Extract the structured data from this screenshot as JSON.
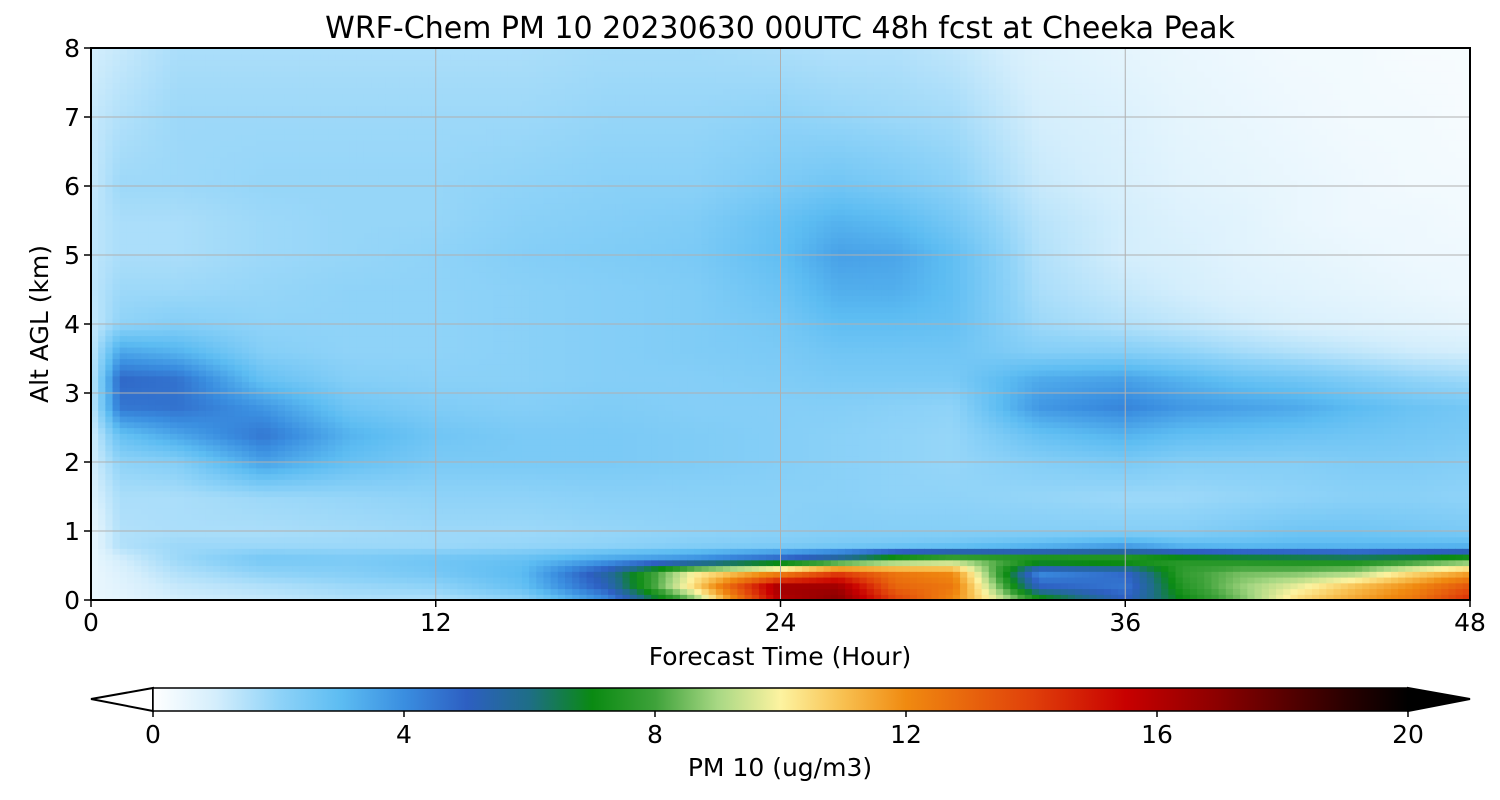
{
  "chart_data": {
    "type": "heatmap",
    "title": "WRF-Chem PM 10  20230630 00UTC 48h fcst at Cheeka Peak",
    "xlabel": "Forecast Time (Hour)",
    "ylabel": "Alt AGL (km)",
    "xlim": [
      0,
      48
    ],
    "ylim": [
      0,
      8
    ],
    "x_ticks": [
      "0",
      "12",
      "24",
      "36",
      "48"
    ],
    "y_ticks": [
      "0",
      "1",
      "2",
      "3",
      "4",
      "5",
      "6",
      "7",
      "8"
    ],
    "grid": true,
    "colorbar": {
      "label": "PM 10  (ug/m3)",
      "range": [
        0,
        20
      ],
      "ticks": [
        "0",
        "4",
        "8",
        "12",
        "16",
        "20"
      ],
      "extend": "both",
      "stops": [
        {
          "v": 0,
          "color": "#ffffff"
        },
        {
          "v": 1,
          "color": "#d4eefc"
        },
        {
          "v": 2,
          "color": "#8fd3f8"
        },
        {
          "v": 3,
          "color": "#5cbcf2"
        },
        {
          "v": 4,
          "color": "#3a8ee0"
        },
        {
          "v": 5,
          "color": "#2d5fc2"
        },
        {
          "v": 6,
          "color": "#1e6e86"
        },
        {
          "v": 7,
          "color": "#0a8a12"
        },
        {
          "v": 8,
          "color": "#3ea23a"
        },
        {
          "v": 9,
          "color": "#a8d884"
        },
        {
          "v": 10,
          "color": "#fdf3a0"
        },
        {
          "v": 11,
          "color": "#f8c050"
        },
        {
          "v": 12,
          "color": "#f08a10"
        },
        {
          "v": 14,
          "color": "#e0400a"
        },
        {
          "v": 15.5,
          "color": "#c80000"
        },
        {
          "v": 17,
          "color": "#8a0000"
        },
        {
          "v": 19,
          "color": "#2a0000"
        },
        {
          "v": 20,
          "color": "#000000"
        }
      ]
    },
    "field": {
      "x_hours": [
        0,
        1,
        3,
        6,
        9,
        12,
        15,
        18,
        21,
        24,
        26,
        28,
        30,
        33,
        36,
        38,
        40,
        42,
        44,
        46,
        48
      ],
      "y_km": [
        0,
        0.2,
        0.4,
        0.6,
        0.8,
        1.0,
        1.5,
        2.0,
        2.4,
        2.8,
        3.2,
        3.6,
        4.0,
        4.5,
        5.0,
        5.5,
        6.0,
        7.0,
        8.0
      ],
      "values": [
        [
          0.5,
          0.5,
          0.5,
          0.5,
          0.5,
          0.5,
          0.8,
          1.0,
          1.0,
          1.2,
          1.2,
          1.2,
          1.2,
          1.3,
          1.3,
          1.3,
          1.2,
          1.2,
          1.0
        ],
        [
          0.6,
          0.7,
          0.8,
          1.0,
          1.5,
          1.5,
          1.6,
          2.0,
          2.8,
          4.5,
          4.8,
          3.5,
          2.0,
          1.8,
          1.6,
          1.6,
          1.8,
          1.5,
          1.2
        ],
        [
          1.0,
          1.2,
          1.5,
          1.8,
          1.8,
          1.6,
          1.6,
          2.2,
          3.5,
          4.6,
          4.6,
          3.2,
          2.2,
          1.8,
          1.6,
          1.6,
          1.8,
          1.8,
          1.6
        ],
        [
          1.2,
          1.5,
          2.0,
          2.5,
          1.8,
          1.6,
          1.8,
          3.6,
          4.5,
          3.8,
          2.8,
          2.2,
          2.0,
          1.9,
          1.8,
          1.8,
          1.9,
          1.8,
          1.6
        ],
        [
          1.5,
          1.8,
          2.2,
          2.4,
          1.8,
          1.7,
          1.9,
          2.8,
          3.2,
          2.6,
          2.2,
          2.0,
          2.0,
          2.0,
          1.9,
          1.9,
          1.9,
          1.8,
          1.6
        ],
        [
          1.5,
          2.0,
          2.5,
          2.6,
          1.8,
          1.8,
          2.0,
          2.4,
          2.6,
          2.3,
          2.1,
          2.0,
          2.0,
          2.0,
          2.0,
          1.9,
          1.9,
          1.8,
          1.6
        ],
        [
          2.0,
          2.8,
          3.0,
          2.8,
          1.9,
          1.8,
          2.0,
          2.4,
          2.4,
          2.2,
          2.1,
          2.1,
          2.1,
          2.1,
          2.2,
          2.1,
          2.0,
          1.8,
          1.6
        ],
        [
          4.0,
          5.2,
          5.6,
          3.5,
          2.0,
          1.9,
          2.1,
          2.4,
          2.4,
          2.3,
          2.2,
          2.2,
          2.2,
          2.2,
          2.3,
          2.2,
          2.1,
          1.9,
          1.7
        ],
        [
          8.5,
          10.5,
          10.0,
          4.0,
          2.2,
          2.0,
          2.1,
          2.3,
          2.3,
          2.2,
          2.2,
          2.3,
          2.3,
          2.3,
          2.4,
          2.3,
          2.1,
          1.9,
          1.7
        ],
        [
          16.0,
          16.5,
          12.0,
          5.0,
          2.3,
          2.1,
          2.1,
          2.2,
          2.2,
          2.2,
          2.3,
          2.4,
          2.5,
          2.7,
          2.9,
          2.8,
          2.4,
          2.0,
          1.6
        ],
        [
          17.0,
          16.5,
          14.0,
          6.0,
          2.4,
          2.2,
          2.1,
          2.1,
          2.1,
          2.2,
          2.4,
          2.6,
          2.9,
          3.3,
          3.6,
          3.2,
          2.6,
          1.9,
          1.5
        ],
        [
          14.0,
          13.0,
          12.5,
          7.8,
          2.5,
          2.2,
          2.0,
          2.0,
          2.0,
          2.1,
          2.4,
          2.6,
          2.9,
          3.3,
          3.5,
          3.0,
          2.4,
          1.8,
          1.5
        ],
        [
          12.0,
          12.5,
          12.0,
          8.5,
          2.6,
          2.2,
          2.0,
          1.9,
          1.9,
          2.0,
          2.4,
          2.6,
          2.8,
          2.9,
          2.9,
          2.5,
          2.1,
          1.7,
          1.3
        ],
        [
          7.5,
          5.0,
          4.0,
          8.0,
          3.0,
          2.2,
          1.9,
          2.2,
          2.8,
          3.8,
          3.4,
          2.2,
          1.8,
          1.6,
          1.5,
          1.4,
          1.2,
          1.0,
          0.8
        ],
        [
          5.0,
          4.5,
          4.8,
          8.0,
          3.5,
          2.2,
          1.8,
          2.4,
          3.2,
          4.2,
          3.6,
          2.2,
          1.5,
          1.2,
          1.0,
          1.0,
          0.9,
          0.8,
          0.6
        ],
        [
          7.0,
          7.5,
          7.8,
          7.5,
          3.0,
          2.2,
          1.8,
          2.2,
          2.9,
          3.8,
          3.2,
          2.0,
          1.3,
          1.0,
          0.9,
          0.8,
          0.7,
          0.6,
          0.5
        ],
        [
          8.5,
          8.8,
          8.5,
          7.2,
          2.9,
          2.4,
          1.9,
          2.2,
          2.8,
          3.6,
          2.8,
          1.7,
          1.1,
          0.8,
          0.7,
          0.7,
          0.6,
          0.5,
          0.4
        ],
        [
          10.5,
          9.8,
          8.6,
          7.0,
          3.0,
          2.6,
          2.0,
          2.2,
          2.7,
          3.4,
          2.6,
          1.5,
          0.9,
          0.7,
          0.6,
          0.5,
          0.5,
          0.4,
          0.3
        ],
        [
          11.5,
          11.0,
          9.0,
          6.8,
          3.0,
          2.6,
          2.1,
          2.3,
          2.6,
          3.0,
          2.3,
          1.3,
          0.8,
          0.6,
          0.5,
          0.4,
          0.4,
          0.3,
          0.3
        ],
        [
          12.5,
          12.0,
          10.5,
          7.2,
          3.0,
          2.5,
          2.1,
          2.3,
          2.5,
          2.7,
          2.0,
          1.1,
          0.7,
          0.5,
          0.4,
          0.4,
          0.3,
          0.3,
          0.2
        ],
        [
          14.5,
          13.5,
          11.5,
          7.8,
          3.0,
          2.4,
          2.0,
          2.2,
          2.4,
          2.5,
          1.8,
          1.0,
          0.6,
          0.4,
          0.4,
          0.3,
          0.3,
          0.2,
          0.2
        ]
      ]
    }
  }
}
